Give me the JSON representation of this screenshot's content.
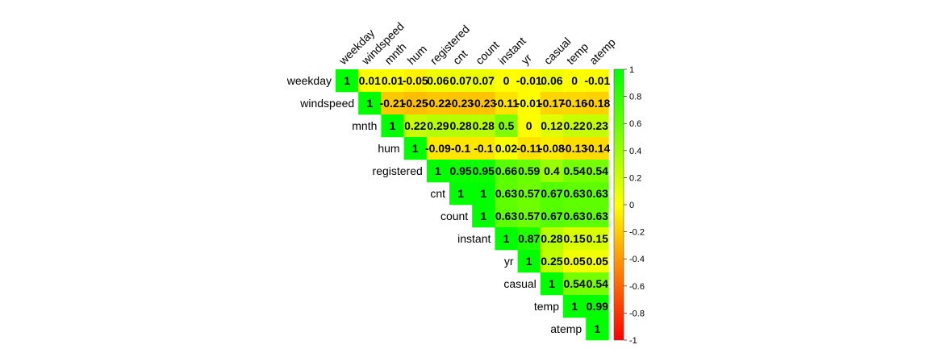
{
  "chart_data": {
    "type": "heatmap",
    "subtype": "upper-triangle correlation matrix",
    "variables": [
      "weekday",
      "windspeed",
      "mnth",
      "hum",
      "registered",
      "cnt",
      "count",
      "instant",
      "yr",
      "casual",
      "temp",
      "atemp"
    ],
    "values": [
      [
        "1",
        "0.01",
        "0.01",
        "-0.05",
        "0.06",
        "0.07",
        "0.07",
        "0",
        "-0.01",
        "0.06",
        "0",
        "-0.01"
      ],
      [
        "1",
        "-0.21",
        "-0.25",
        "-0.22",
        "-0.23",
        "-0.23",
        "-0.11",
        "-0.01",
        "-0.17",
        "-0.16",
        "-0.18"
      ],
      [
        "1",
        "0.22",
        "0.29",
        "0.28",
        "0.28",
        "0.5",
        "0",
        "0.12",
        "0.22",
        "0.23"
      ],
      [
        "1",
        "-0.09",
        "-0.1",
        "-0.1",
        "0.02",
        "-0.11",
        "-0.08",
        "-0.13",
        "-0.14"
      ],
      [
        "1",
        "0.95",
        "0.95",
        "0.66",
        "0.59",
        "0.4",
        "0.54",
        "0.54"
      ],
      [
        "1",
        "1",
        "0.63",
        "0.57",
        "0.67",
        "0.63",
        "0.63"
      ],
      [
        "1",
        "0.63",
        "0.57",
        "0.67",
        "0.63",
        "0.63"
      ],
      [
        "1",
        "0.87",
        "0.28",
        "0.15",
        "0.15"
      ],
      [
        "1",
        "0.25",
        "0.05",
        "0.05"
      ],
      [
        "1",
        "0.54",
        "0.54"
      ],
      [
        "1",
        "0.99"
      ],
      [
        "1"
      ]
    ],
    "colorbar": {
      "range": [
        -1,
        1
      ],
      "ticks": [
        "1",
        "0.8",
        "0.6",
        "0.4",
        "0.2",
        "0",
        "-0.2",
        "-0.4",
        "-0.6",
        "-0.8",
        "-1"
      ],
      "colors": {
        "low": "#ff0000",
        "mid": "#ffff00",
        "high": "#00ff00"
      }
    },
    "title": "",
    "xlabel": "",
    "ylabel": "",
    "grid": false,
    "legend": "right"
  }
}
